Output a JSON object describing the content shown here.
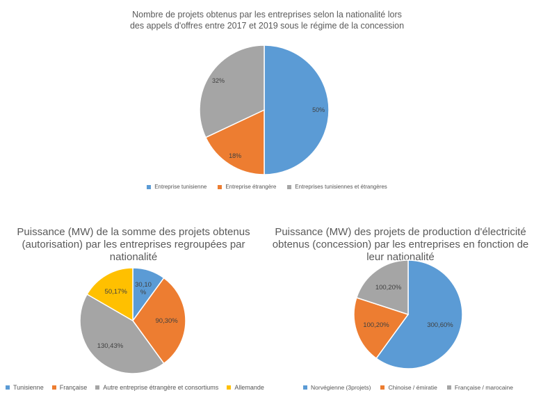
{
  "chart_data": [
    {
      "id": "chart-top",
      "type": "pie",
      "title": "Nombre de projets obtenus par les entreprises selon la nationalité lors des appels d'offres entre 2017 et 2019 sous le régime de la concession",
      "categories": [
        "Entreprise tunisienne",
        "Entreprise étrangère",
        "Entreprises tunisiennes et étrangères"
      ],
      "values": [
        50,
        18,
        32
      ],
      "labels": [
        "50%",
        "18%",
        "32%"
      ],
      "colors": [
        "#5b9bd5",
        "#ed7d31",
        "#a5a5a5"
      ],
      "legend": "bottom"
    },
    {
      "id": "chart-left",
      "type": "pie",
      "title": "Puissance (MW) de la somme des projets obtenus (autorisation) par les entreprises regroupées par nationalité",
      "categories": [
        "Tunisienne",
        "Française",
        "Autre entreprise étrangère et consortiums",
        "Allemande"
      ],
      "values": [
        30.1,
        90.3,
        130.43,
        50.17
      ],
      "labels": [
        "30,10\n%",
        "90,30%",
        "130,43%",
        "50,17%"
      ],
      "colors": [
        "#5b9bd5",
        "#ed7d31",
        "#a5a5a5",
        "#ffc000"
      ],
      "legend": "bottom"
    },
    {
      "id": "chart-right",
      "type": "pie",
      "title": "Puissance (MW) des projets de production d'électricité obtenus (concession) par les entreprises en fonction de leur nationalité",
      "categories": [
        "Norvégienne (3projets)",
        "Chinoise / émiratie",
        "Française / marocaine"
      ],
      "values": [
        300.6,
        100.2,
        100.2
      ],
      "labels": [
        "300,60%",
        "100,20%",
        "100,20%"
      ],
      "colors": [
        "#5b9bd5",
        "#ed7d31",
        "#a5a5a5"
      ],
      "legend": "bottom"
    }
  ]
}
